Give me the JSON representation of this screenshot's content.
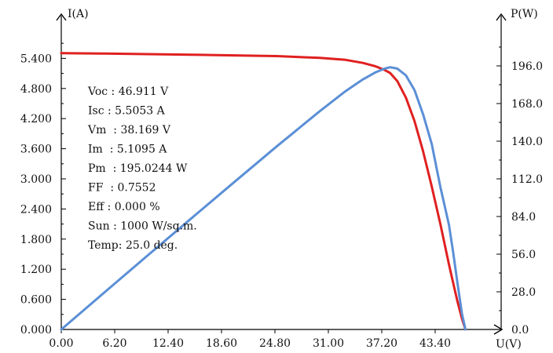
{
  "chart_data": {
    "type": "line",
    "x_axis": {
      "label": "U(V)",
      "min": 0,
      "max": 49.6,
      "ticks": [
        "0.00",
        "6.20",
        "12.40",
        "18.60",
        "24.80",
        "31.00",
        "37.20",
        "43.40"
      ]
    },
    "y_axis_left": {
      "label": "I(A)",
      "min": 0,
      "max": 6.0,
      "ticks": [
        "0.000",
        "0.600",
        "1.200",
        "1.800",
        "2.400",
        "3.000",
        "3.600",
        "4.200",
        "4.800",
        "5.400"
      ]
    },
    "y_axis_right": {
      "label": "P(W)",
      "min": 0,
      "max": 224,
      "ticks": [
        "0.0",
        "28.0",
        "56.0",
        "84.0",
        "112.0",
        "140.0",
        "168.0",
        "196.0"
      ]
    },
    "series": [
      {
        "axis": "left",
        "color": "#e02020",
        "x": [
          0,
          5,
          10,
          15,
          20,
          25,
          30,
          33,
          35,
          36.5,
          37.5,
          38.169,
          39,
          40,
          41,
          42,
          43,
          44,
          45,
          45.5,
          46,
          46.5,
          46.911
        ],
        "y": [
          5.5053,
          5.495,
          5.485,
          5.473,
          5.46,
          5.445,
          5.41,
          5.37,
          5.31,
          5.24,
          5.17,
          5.1095,
          4.95,
          4.62,
          4.15,
          3.55,
          2.85,
          2.1,
          1.3,
          0.92,
          0.55,
          0.22,
          0
        ]
      },
      {
        "axis": "right",
        "color": "#5b8fd6",
        "x": [
          0,
          5,
          10,
          15,
          20,
          25,
          30,
          33,
          35,
          36.5,
          37.5,
          38.169,
          39,
          40,
          41,
          42,
          43,
          44,
          45,
          45.5,
          46,
          46.5,
          46.911
        ],
        "y": [
          0,
          27.5,
          54.9,
          82.1,
          109.2,
          136.1,
          162.3,
          177.2,
          185.9,
          191.3,
          193.9,
          195.0244,
          194.0,
          189.0,
          178.0,
          160.0,
          138.0,
          106.0,
          78.0,
          57.0,
          34.0,
          12.0,
          0
        ]
      }
    ],
    "info_lines": [
      "Voc : 46.911 V",
      "Isc : 5.5053 A",
      "Vm  : 38.169 V",
      "Im  : 5.1095 A",
      "Pm  : 195.0244 W",
      "FF  : 0.7552",
      "Eff : 0.000 %",
      "Sun : 1000 W/sq.m.",
      "Temp: 25.0 deg."
    ],
    "grid": false
  }
}
